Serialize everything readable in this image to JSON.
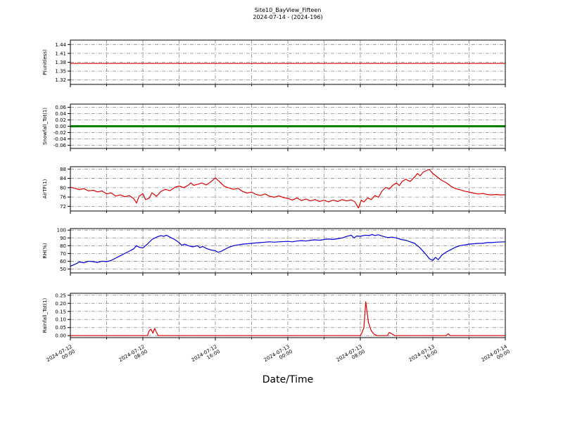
{
  "header": {
    "title": "Site10_BayView_Fifteen",
    "subtitle": "2024-07-14 - (2024-196)"
  },
  "xaxis": {
    "label": "Date/Time",
    "range_hours": [
      0,
      48
    ],
    "minor_grid_step_hours": 4,
    "major_tick_hours": [
      0,
      8,
      16,
      24,
      32,
      40,
      48
    ],
    "major_tick_labels": [
      [
        "2024-07-12",
        "00:00"
      ],
      [
        "2024-07-12",
        "08:00"
      ],
      [
        "2024-07-12",
        "16:00"
      ],
      [
        "2024-07-13",
        "00:00"
      ],
      [
        "2024-07-13",
        "08:00"
      ],
      [
        "2024-07-13",
        "16:00"
      ],
      [
        "2024-07-14",
        "00:00"
      ]
    ]
  },
  "chart_data": [
    {
      "type": "line",
      "name": "P",
      "ylabel": "P(unitless)",
      "color": "#dd0000",
      "linewidth": 1.2,
      "ylim": [
        1.305,
        1.455
      ],
      "yticks": [
        "1.44",
        "1.41",
        "1.38",
        "1.35",
        "1.32"
      ],
      "points": [
        [
          0,
          1.376
        ],
        [
          48,
          1.376
        ]
      ]
    },
    {
      "type": "line",
      "name": "Snowfall_Tot",
      "ylabel": "Snowfall_Tot(1)",
      "color": "#008000",
      "linewidth": 3,
      "ylim": [
        -0.07,
        0.07
      ],
      "yticks": [
        "0.06",
        "0.04",
        "0.02",
        "0.00",
        "-0.02",
        "-0.04",
        "-0.06"
      ],
      "points": [
        [
          0,
          0.0
        ],
        [
          48,
          0.0
        ]
      ]
    },
    {
      "type": "line",
      "name": "AirTF",
      "ylabel": "AirTF(1)",
      "color": "#dd0000",
      "linewidth": 1.2,
      "ylim": [
        70,
        89
      ],
      "yticks": [
        "88",
        "84",
        "80",
        "76",
        "72"
      ],
      "points": [
        [
          0,
          80.2
        ],
        [
          0.5,
          79.7
        ],
        [
          1,
          79.2
        ],
        [
          1.5,
          79.6
        ],
        [
          2,
          78.6
        ],
        [
          2.5,
          78.9
        ],
        [
          3,
          78.2
        ],
        [
          3.5,
          78.6
        ],
        [
          4,
          77.3
        ],
        [
          4.5,
          77.8
        ],
        [
          5,
          76.4
        ],
        [
          5.5,
          76.9
        ],
        [
          6,
          76.1
        ],
        [
          6.5,
          76.6
        ],
        [
          7,
          75.3
        ],
        [
          7.3,
          73.4
        ],
        [
          7.6,
          76.4
        ],
        [
          8,
          77.4
        ],
        [
          8.3,
          74.9
        ],
        [
          8.7,
          75.5
        ],
        [
          9,
          77.8
        ],
        [
          9.5,
          76.3
        ],
        [
          10,
          78.4
        ],
        [
          10.5,
          79.3
        ],
        [
          11,
          78.7
        ],
        [
          11.5,
          80.1
        ],
        [
          12,
          80.7
        ],
        [
          12.5,
          80.0
        ],
        [
          13,
          81.0
        ],
        [
          13.3,
          82.1
        ],
        [
          13.6,
          81.0
        ],
        [
          14,
          81.4
        ],
        [
          14.5,
          82.0
        ],
        [
          15,
          81.2
        ],
        [
          15.5,
          82.5
        ],
        [
          16,
          84.2
        ],
        [
          16.4,
          82.8
        ],
        [
          17,
          80.6
        ],
        [
          17.5,
          79.9
        ],
        [
          18,
          79.3
        ],
        [
          18.5,
          79.7
        ],
        [
          19,
          78.4
        ],
        [
          19.5,
          77.7
        ],
        [
          20,
          78.1
        ],
        [
          20.5,
          77.1
        ],
        [
          21,
          76.7
        ],
        [
          21.5,
          77.3
        ],
        [
          22,
          76.3
        ],
        [
          22.5,
          75.9
        ],
        [
          23,
          76.5
        ],
        [
          23.5,
          75.8
        ],
        [
          24,
          75.4
        ],
        [
          24.5,
          74.7
        ],
        [
          25,
          75.6
        ],
        [
          25.5,
          74.5
        ],
        [
          26,
          75.1
        ],
        [
          26.5,
          74.3
        ],
        [
          27,
          74.9
        ],
        [
          27.5,
          74.1
        ],
        [
          28,
          74.6
        ],
        [
          28.5,
          73.9
        ],
        [
          29,
          74.7
        ],
        [
          29.5,
          74.1
        ],
        [
          30,
          74.9
        ],
        [
          30.5,
          74.3
        ],
        [
          31,
          74.8
        ],
        [
          31.4,
          73.9
        ],
        [
          31.8,
          71.3
        ],
        [
          32.1,
          74.6
        ],
        [
          32.4,
          73.9
        ],
        [
          32.8,
          75.6
        ],
        [
          33.2,
          74.9
        ],
        [
          33.6,
          76.6
        ],
        [
          34,
          75.9
        ],
        [
          34.4,
          78.6
        ],
        [
          34.8,
          80.1
        ],
        [
          35.2,
          79.4
        ],
        [
          35.6,
          81.1
        ],
        [
          36,
          82.0
        ],
        [
          36.3,
          80.9
        ],
        [
          36.6,
          82.6
        ],
        [
          37,
          83.6
        ],
        [
          37.5,
          82.7
        ],
        [
          38,
          84.6
        ],
        [
          38.3,
          86.1
        ],
        [
          38.6,
          85.1
        ],
        [
          39,
          86.9
        ],
        [
          39.6,
          87.8
        ],
        [
          40,
          86.1
        ],
        [
          40.5,
          84.6
        ],
        [
          41,
          83.1
        ],
        [
          41.5,
          82.1
        ],
        [
          42,
          80.6
        ],
        [
          42.5,
          79.6
        ],
        [
          43,
          79.1
        ],
        [
          43.5,
          78.5
        ],
        [
          44,
          78.1
        ],
        [
          44.5,
          77.7
        ],
        [
          45,
          77.3
        ],
        [
          45.5,
          77.5
        ],
        [
          46,
          77.1
        ],
        [
          46.5,
          76.9
        ],
        [
          47,
          77.1
        ],
        [
          47.5,
          76.9
        ],
        [
          48,
          77.0
        ]
      ]
    },
    {
      "type": "line",
      "name": "RH",
      "ylabel": "RH(%)",
      "color": "#0000dd",
      "linewidth": 1.2,
      "ylim": [
        45,
        102
      ],
      "yticks": [
        "100",
        "90",
        "80",
        "70",
        "60",
        "50"
      ],
      "points": [
        [
          0,
          53.5
        ],
        [
          0.5,
          56
        ],
        [
          1,
          59
        ],
        [
          1.5,
          58
        ],
        [
          2,
          60
        ],
        [
          2.5,
          59.5
        ],
        [
          3,
          58.5
        ],
        [
          3.5,
          60
        ],
        [
          4,
          59.5
        ],
        [
          4.5,
          61
        ],
        [
          5,
          64
        ],
        [
          5.5,
          67
        ],
        [
          6,
          70
        ],
        [
          6.5,
          73
        ],
        [
          7,
          76
        ],
        [
          7.3,
          80
        ],
        [
          7.6,
          78
        ],
        [
          8,
          77
        ],
        [
          8.5,
          82
        ],
        [
          9,
          88
        ],
        [
          9.5,
          91
        ],
        [
          10,
          93
        ],
        [
          10.3,
          92
        ],
        [
          10.6,
          93.5
        ],
        [
          11,
          91
        ],
        [
          11.5,
          88
        ],
        [
          12,
          84
        ],
        [
          12.3,
          80.5
        ],
        [
          12.6,
          82
        ],
        [
          13,
          80
        ],
        [
          13.5,
          78.5
        ],
        [
          14,
          80
        ],
        [
          14.3,
          77.5
        ],
        [
          14.6,
          79
        ],
        [
          15,
          76.5
        ],
        [
          15.5,
          74.5
        ],
        [
          16,
          73.5
        ],
        [
          16.3,
          71.5
        ],
        [
          16.6,
          72.5
        ],
        [
          17,
          75
        ],
        [
          17.5,
          78
        ],
        [
          18,
          80
        ],
        [
          18.5,
          81
        ],
        [
          19,
          82
        ],
        [
          19.5,
          82.5
        ],
        [
          20,
          83
        ],
        [
          20.5,
          83.5
        ],
        [
          21,
          84
        ],
        [
          21.5,
          84.5
        ],
        [
          22,
          85
        ],
        [
          22.5,
          84.5
        ],
        [
          23,
          85
        ],
        [
          24,
          85.5
        ],
        [
          24.5,
          85
        ],
        [
          25,
          86
        ],
        [
          25.5,
          86.5
        ],
        [
          26,
          86
        ],
        [
          26.5,
          87
        ],
        [
          27,
          87.5
        ],
        [
          27.5,
          87
        ],
        [
          28,
          88
        ],
        [
          28.5,
          88.5
        ],
        [
          29,
          88
        ],
        [
          29.5,
          89
        ],
        [
          30,
          90
        ],
        [
          30.5,
          92
        ],
        [
          31,
          93.5
        ],
        [
          31.3,
          90
        ],
        [
          31.6,
          92.5
        ],
        [
          32,
          92
        ],
        [
          32.5,
          93.5
        ],
        [
          33,
          93
        ],
        [
          33.3,
          94.5
        ],
        [
          33.6,
          93
        ],
        [
          34,
          94
        ],
        [
          34.5,
          92
        ],
        [
          35,
          90.5
        ],
        [
          35.5,
          91
        ],
        [
          36,
          90
        ],
        [
          36.5,
          88
        ],
        [
          37,
          87
        ],
        [
          37.5,
          85
        ],
        [
          38,
          83
        ],
        [
          38.3,
          80
        ],
        [
          38.6,
          77
        ],
        [
          39,
          72
        ],
        [
          39.3,
          68
        ],
        [
          39.6,
          63.5
        ],
        [
          40,
          61
        ],
        [
          40.3,
          65
        ],
        [
          40.6,
          62
        ],
        [
          41,
          68
        ],
        [
          41.5,
          72
        ],
        [
          42,
          75
        ],
        [
          42.5,
          78
        ],
        [
          43,
          80
        ],
        [
          43.5,
          81
        ],
        [
          44,
          82
        ],
        [
          44.5,
          82.5
        ],
        [
          45,
          83
        ],
        [
          45.5,
          83
        ],
        [
          46,
          84
        ],
        [
          46.5,
          84
        ],
        [
          47,
          84.5
        ],
        [
          48,
          85
        ]
      ]
    },
    {
      "type": "line",
      "name": "Rainfall_Tot",
      "ylabel": "Rainfall_Tot(1)",
      "color": "#dd0000",
      "linewidth": 1.2,
      "ylim": [
        -0.012,
        0.262
      ],
      "yticks": [
        "0.25",
        "0.20",
        "0.15",
        "0.10",
        "0.05",
        "0.00"
      ],
      "points": [
        [
          0,
          0
        ],
        [
          8.5,
          0
        ],
        [
          8.7,
          0.03
        ],
        [
          8.9,
          0.04
        ],
        [
          9.1,
          0.015
        ],
        [
          9.3,
          0.045
        ],
        [
          9.5,
          0.02
        ],
        [
          9.7,
          0
        ],
        [
          32.0,
          0
        ],
        [
          32.2,
          0.02
        ],
        [
          32.4,
          0.05
        ],
        [
          32.6,
          0.21
        ],
        [
          32.9,
          0.08
        ],
        [
          33.2,
          0.03
        ],
        [
          33.5,
          0.01
        ],
        [
          33.8,
          0
        ],
        [
          35.0,
          0
        ],
        [
          35.2,
          0.02
        ],
        [
          35.5,
          0.01
        ],
        [
          35.8,
          0
        ],
        [
          41.5,
          0
        ],
        [
          41.7,
          0.012
        ],
        [
          41.9,
          0
        ],
        [
          48,
          0
        ]
      ]
    }
  ],
  "style": {
    "grid_color": "#888888",
    "frame_color": "#000000",
    "background": "#ffffff"
  }
}
